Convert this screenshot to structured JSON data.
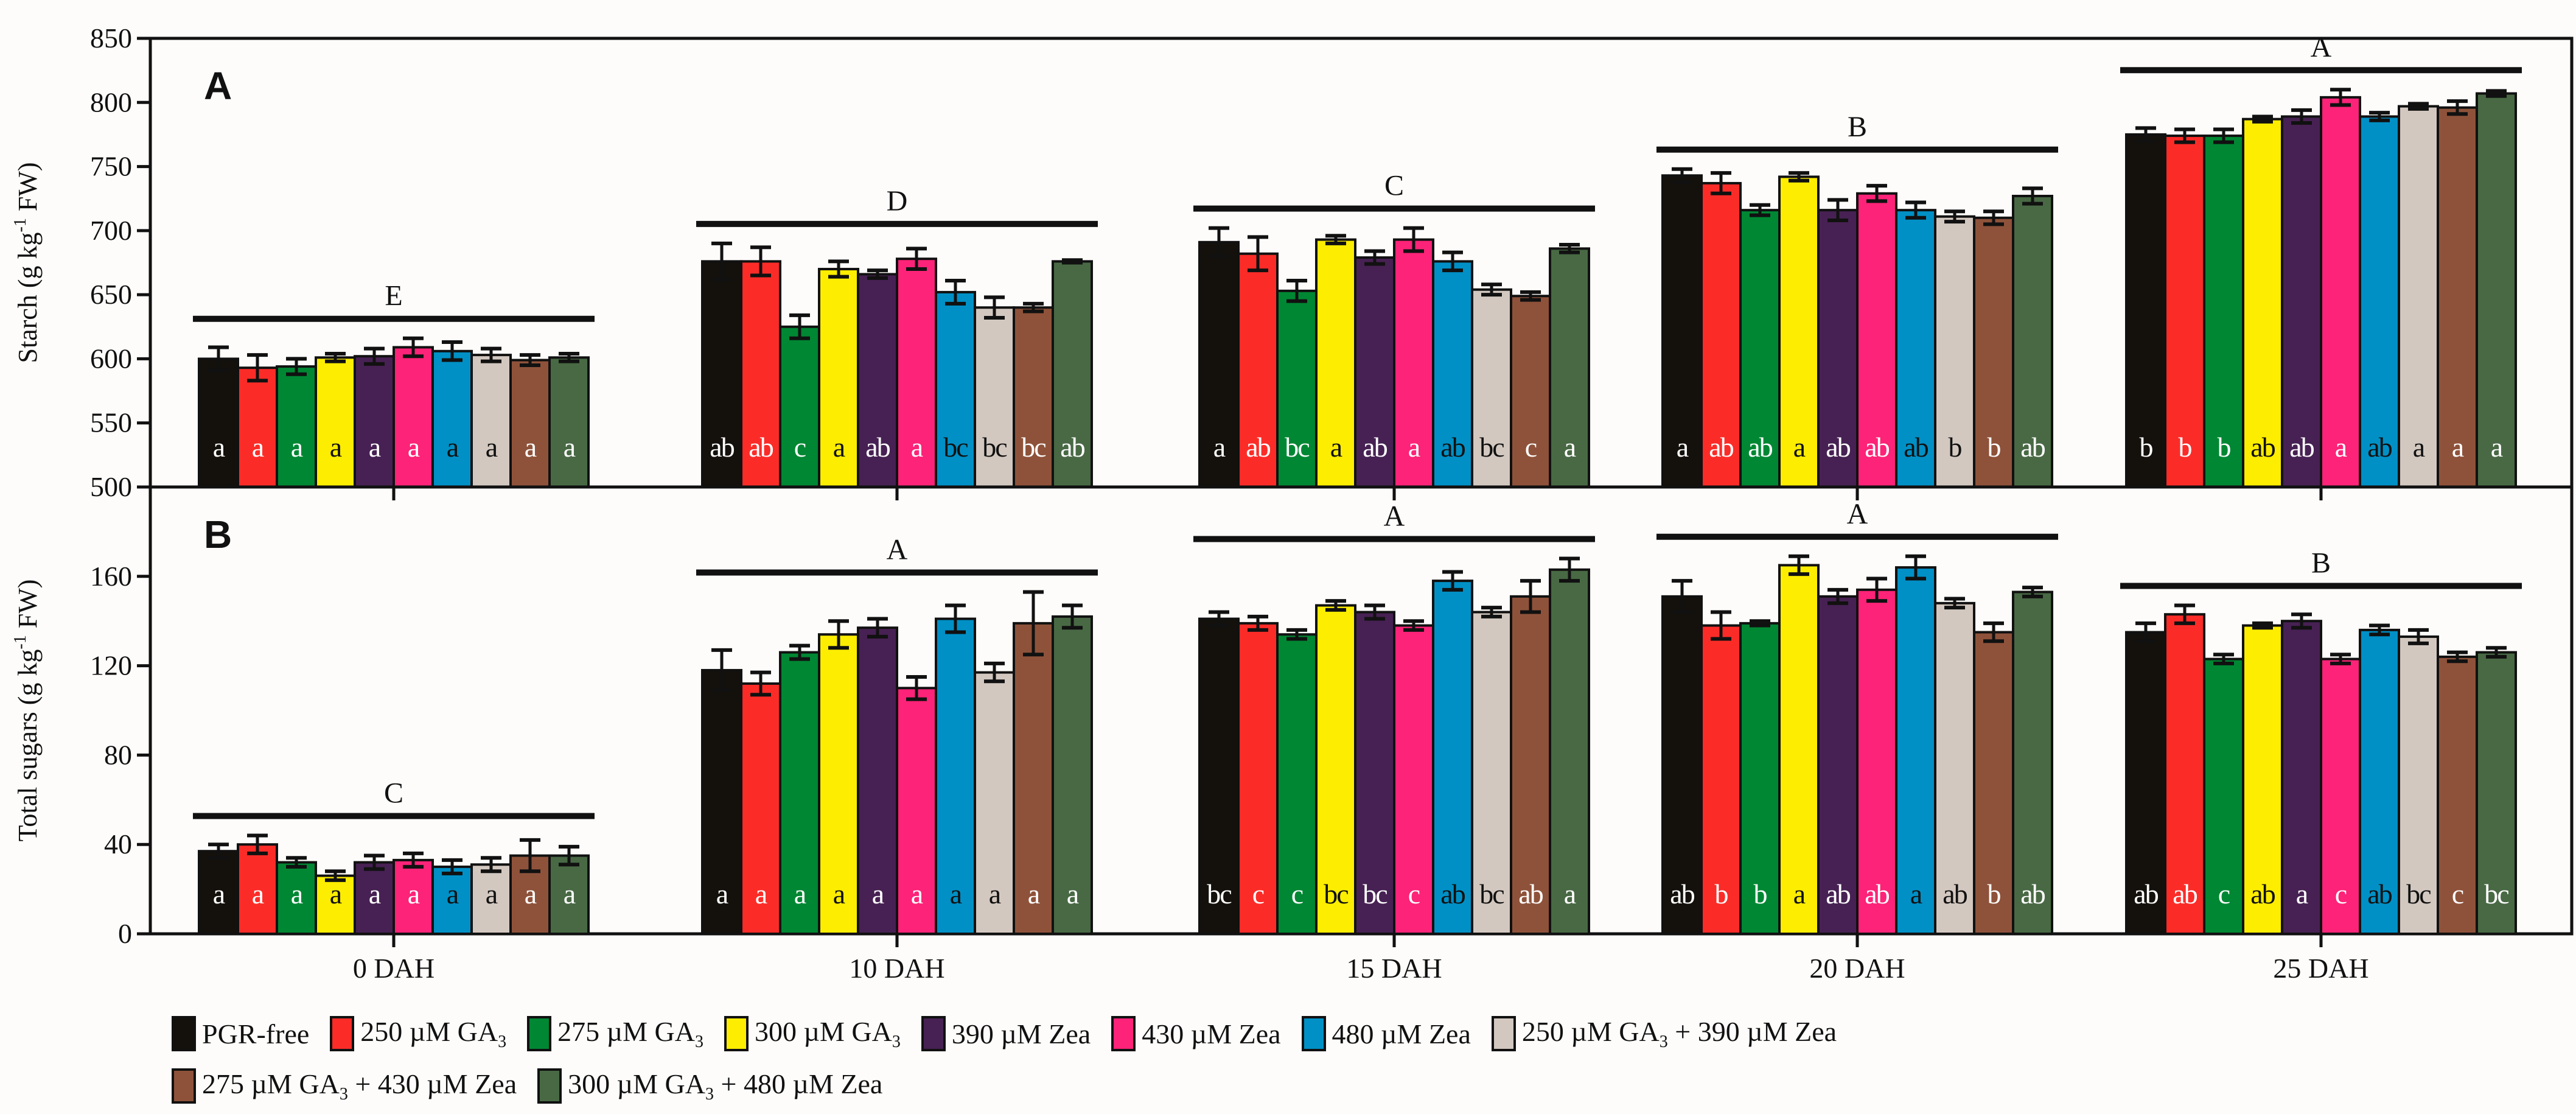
{
  "chart_data": [
    {
      "type": "bar",
      "panel_label": "A",
      "ylabel_pre": "Starch (g kg",
      "ylabel_sup": "-1",
      "ylabel_post": " FW)",
      "ylim": [
        500,
        850
      ],
      "yticks": [
        500,
        550,
        600,
        650,
        700,
        750,
        800,
        850
      ],
      "categories": [
        "0 DAH",
        "10 DAH",
        "15 DAH",
        "20 DAH",
        "25 DAH"
      ],
      "group_letters": [
        "E",
        "D",
        "C",
        "B",
        "A"
      ],
      "values": [
        [
          600,
          593,
          594,
          601,
          602,
          609,
          606,
          603,
          599,
          601
        ],
        [
          676,
          676,
          625,
          670,
          666,
          678,
          652,
          640,
          640,
          676
        ],
        [
          691,
          682,
          653,
          693,
          679,
          693,
          676,
          654,
          649,
          686
        ],
        [
          743,
          737,
          716,
          742,
          716,
          729,
          716,
          711,
          710,
          727
        ],
        [
          775,
          774,
          774,
          787,
          789,
          804,
          789,
          797,
          796,
          807
        ]
      ],
      "errors": [
        [
          9,
          10,
          6,
          3,
          6,
          7,
          7,
          5,
          4,
          3
        ],
        [
          14,
          11,
          9,
          6,
          3,
          8,
          9,
          8,
          3,
          1
        ],
        [
          11,
          13,
          8,
          3,
          5,
          9,
          7,
          4,
          3,
          3
        ],
        [
          5,
          8,
          4,
          3,
          8,
          6,
          6,
          4,
          5,
          6
        ],
        [
          5,
          5,
          5,
          2,
          5,
          6,
          3,
          2,
          5,
          2
        ]
      ],
      "letters": [
        [
          "a",
          "a",
          "a",
          "a",
          "a",
          "a",
          "a",
          "a",
          "a",
          "a"
        ],
        [
          "ab",
          "ab",
          "c",
          "a",
          "ab",
          "a",
          "bc",
          "bc",
          "bc",
          "ab"
        ],
        [
          "a",
          "ab",
          "bc",
          "a",
          "ab",
          "a",
          "ab",
          "bc",
          "c",
          "a"
        ],
        [
          "a",
          "ab",
          "ab",
          "a",
          "ab",
          "ab",
          "ab",
          "b",
          "b",
          "ab"
        ],
        [
          "b",
          "b",
          "b",
          "ab",
          "ab",
          "a",
          "ab",
          "a",
          "a",
          "a"
        ]
      ]
    },
    {
      "type": "bar",
      "panel_label": "B",
      "ylabel_pre": "Total sugars (g kg",
      "ylabel_sup": "-1",
      "ylabel_post": " FW)",
      "ylim": [
        0,
        200
      ],
      "yticks": [
        0,
        40,
        80,
        120,
        160
      ],
      "categories": [
        "0 DAH",
        "10 DAH",
        "15 DAH",
        "20 DAH",
        "25 DAH"
      ],
      "group_letters": [
        "C",
        "A",
        "A",
        "A",
        "B"
      ],
      "values": [
        [
          37,
          40,
          32,
          26,
          32,
          33,
          30,
          31,
          35,
          35
        ],
        [
          118,
          112,
          126,
          134,
          137,
          110,
          141,
          117,
          139,
          142
        ],
        [
          141,
          139,
          134,
          147,
          144,
          138,
          158,
          144,
          151,
          163
        ],
        [
          151,
          138,
          139,
          165,
          151,
          154,
          164,
          148,
          135,
          153
        ],
        [
          135,
          143,
          123,
          138,
          140,
          123,
          136,
          133,
          124,
          126
        ]
      ],
      "errors": [
        [
          3,
          4,
          2,
          2,
          3,
          3,
          3,
          3,
          7,
          4
        ],
        [
          9,
          5,
          3,
          6,
          4,
          5,
          6,
          4,
          14,
          5
        ],
        [
          3,
          3,
          2,
          2,
          3,
          2,
          4,
          2,
          7,
          5
        ],
        [
          7,
          6,
          1,
          4,
          3,
          5,
          5,
          2,
          4,
          2
        ],
        [
          4,
          4,
          2,
          1,
          3,
          2,
          2,
          3,
          2,
          2
        ]
      ],
      "letters": [
        [
          "a",
          "a",
          "a",
          "a",
          "a",
          "a",
          "a",
          "a",
          "a",
          "a"
        ],
        [
          "a",
          "a",
          "a",
          "a",
          "a",
          "a",
          "a",
          "a",
          "a",
          "a"
        ],
        [
          "bc",
          "c",
          "c",
          "bc",
          "bc",
          "c",
          "ab",
          "bc",
          "ab",
          "a"
        ],
        [
          "ab",
          "b",
          "b",
          "a",
          "ab",
          "ab",
          "a",
          "ab",
          "b",
          "ab"
        ],
        [
          "ab",
          "ab",
          "c",
          "ab",
          "a",
          "c",
          "ab",
          "bc",
          "c",
          "bc"
        ]
      ]
    }
  ],
  "series": [
    {
      "pre": "PGR-free",
      "sub": "",
      "post": "",
      "color": "#14110c",
      "text_color": "#ffffff"
    },
    {
      "pre": "250 µM GA",
      "sub": "3",
      "post": "",
      "color": "#fb2c28",
      "text_color": "#ffffff"
    },
    {
      "pre": "275 µM GA",
      "sub": "3",
      "post": "",
      "color": "#008733",
      "text_color": "#ffffff"
    },
    {
      "pre": "300 µM GA",
      "sub": "3",
      "post": "",
      "color": "#fded00",
      "text_color": "#111111"
    },
    {
      "pre": "390 µM Zea",
      "sub": "",
      "post": "",
      "color": "#472153",
      "text_color": "#ffffff"
    },
    {
      "pre": "430 µM Zea",
      "sub": "",
      "post": "",
      "color": "#fc2378",
      "text_color": "#ffffff"
    },
    {
      "pre": "480 µM Zea",
      "sub": "",
      "post": "",
      "color": "#0090c6",
      "text_color": "#111111"
    },
    {
      "pre": "250 µM GA",
      "sub": "3",
      "post": " + 390 µM Zea",
      "color": "#d3c8c0",
      "text_color": "#111111"
    },
    {
      "pre": "275 µM GA",
      "sub": "3",
      "post": " + 430 µM Zea",
      "color": "#8e523a",
      "text_color": "#ffffff"
    },
    {
      "pre": "300 µM GA",
      "sub": "3",
      "post": " + 480 µM Zea",
      "color": "#486944",
      "text_color": "#ffffff"
    }
  ]
}
